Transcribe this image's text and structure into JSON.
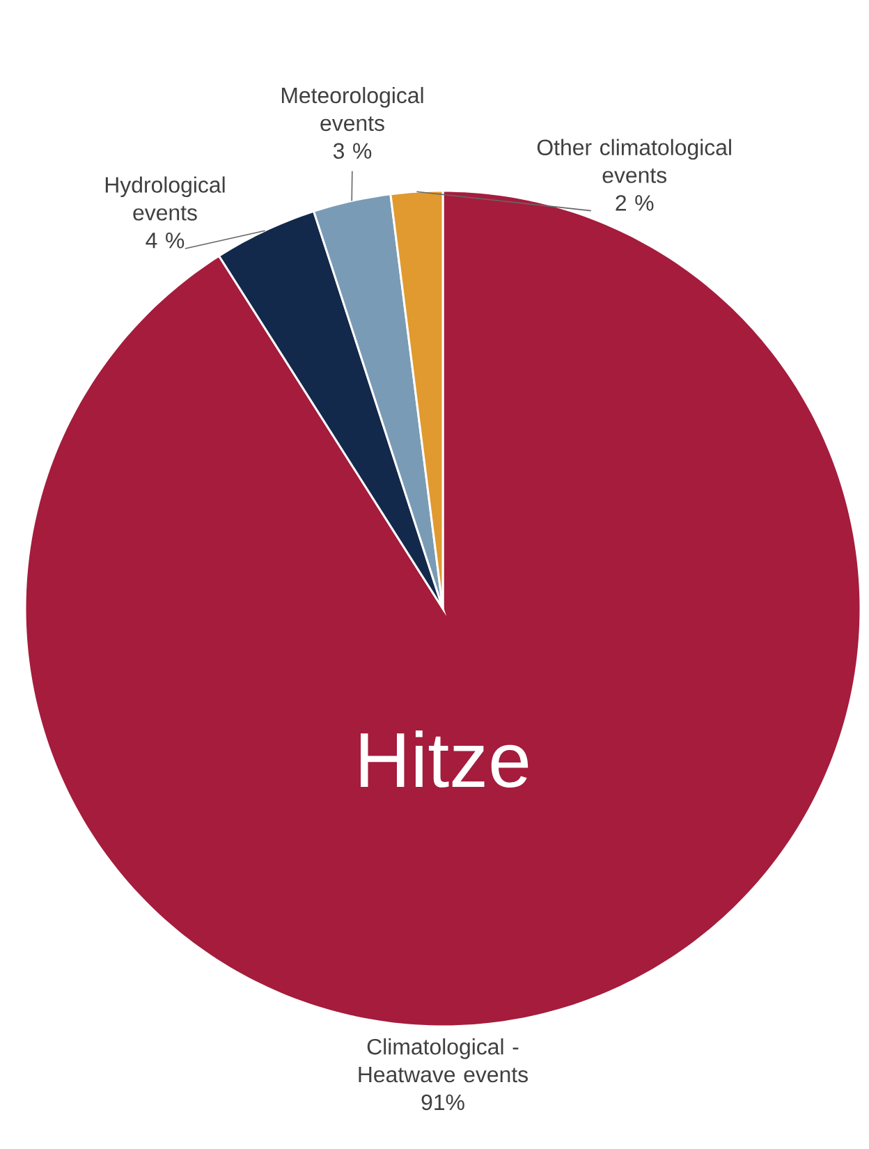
{
  "chart_data": {
    "type": "pie",
    "categories": [
      "Climatological - Heatwave events",
      "Hydrological events",
      "Meteorological events",
      "Other climatological events"
    ],
    "values": [
      91,
      4,
      3,
      2
    ],
    "value_labels": [
      "91%",
      "4 %",
      "3 %",
      "2 %"
    ],
    "colors": [
      "#a51c3c",
      "#13294b",
      "#7a9bb5",
      "#e09a2f"
    ],
    "annotations": [
      "Hitze"
    ]
  }
}
